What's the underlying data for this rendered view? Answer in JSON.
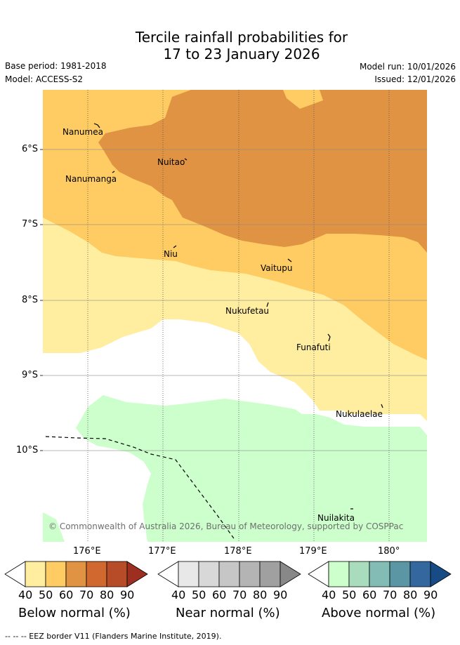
{
  "title": {
    "line1": "Tercile rainfall probabilities for",
    "line2": "17 to 23 January 2026"
  },
  "meta": {
    "base_period": "Base period: 1981-2018",
    "model": "Model: ACCESS-S2",
    "model_run": "Model run: 10/01/2026",
    "issued": "Issued: 12/01/2026"
  },
  "map": {
    "lat_labels": [
      "6°S",
      "7°S",
      "8°S",
      "9°S",
      "10°S"
    ],
    "lon_labels": [
      "176°E",
      "177°E",
      "178°E",
      "179°E",
      "180°"
    ],
    "islands": [
      "Nanumea",
      "Nuitao",
      "Nanumanga",
      "Niu",
      "Vaitupu",
      "Nukufetau",
      "Funafuti",
      "Nukulaelae",
      "Nuilakita"
    ],
    "copyright": "© Commonwealth of Australia 2026, Bureau of Meteorology, supported by COSPPac",
    "colors": {
      "below_50": "#ffeda0",
      "below_60": "#fecc62",
      "below_70": "#e09343",
      "near_40": "#ffffff",
      "above_40": "#ccffcc"
    }
  },
  "legend": {
    "ticks": [
      "40",
      "50",
      "60",
      "70",
      "80",
      "90"
    ],
    "below": {
      "label": "Below normal (%)",
      "colors": [
        "#ffeda0",
        "#fecc62",
        "#e09343",
        "#d0682f",
        "#b74c28",
        "#9c2f20"
      ]
    },
    "near": {
      "label": "Near normal (%)",
      "colors": [
        "#e8e8e8",
        "#d8d8d8",
        "#c6c6c6",
        "#b4b4b4",
        "#a0a0a0",
        "#888888"
      ]
    },
    "above": {
      "label": "Above normal (%)",
      "colors": [
        "#ccffcc",
        "#a8dcbc",
        "#82bcb4",
        "#5a96a4",
        "#33679e",
        "#174b86"
      ]
    }
  },
  "footnote": "--  --  -- EEZ border V11 (Flanders Marine Institute, 2019)."
}
